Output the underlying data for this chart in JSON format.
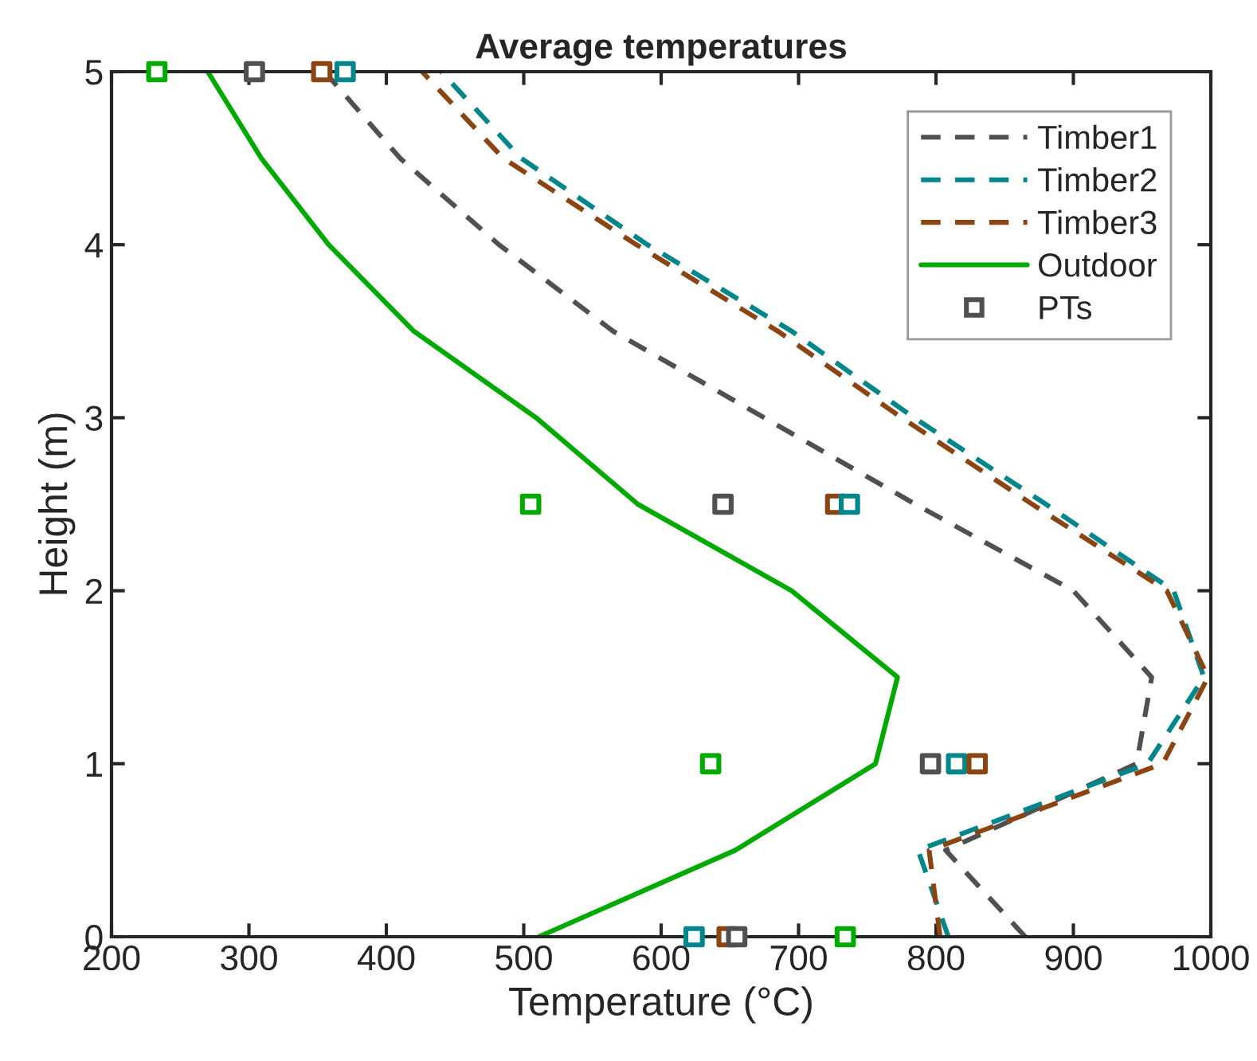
{
  "chart_data": {
    "type": "line",
    "title": "Average temperatures",
    "xlabel": "Temperature (°C)",
    "ylabel": "Height (m)",
    "xlim": [
      200,
      1000
    ],
    "xticks": [
      200,
      300,
      400,
      500,
      600,
      700,
      800,
      900,
      1000
    ],
    "ylim": [
      0,
      5
    ],
    "yticks": [
      0,
      1,
      2,
      3,
      4,
      5
    ],
    "grid": false,
    "legend": "top right",
    "series": [
      {
        "name": "Timber1",
        "line_style": "dashed",
        "color": "#505050",
        "x": [
          865,
          807,
          946,
          957,
          900,
          785,
          675,
          565,
          482,
          410,
          355
        ],
        "values": [
          0,
          0.5,
          1,
          1.5,
          2,
          2.5,
          3,
          3.5,
          4,
          4.5,
          5
        ]
      },
      {
        "name": "Timber2",
        "line_style": "dashed",
        "color": "#00868b",
        "x": [
          809,
          787,
          954,
          995,
          973,
          880,
          784,
          695,
          590,
          498,
          440
        ],
        "values": [
          0,
          0.5,
          1,
          1.5,
          2,
          2.5,
          3,
          3.5,
          4,
          4.5,
          5
        ]
      },
      {
        "name": "Timber3",
        "line_style": "dashed",
        "color": "#8b4513",
        "x": [
          803,
          795,
          965,
          998,
          968,
          870,
          775,
          685,
          582,
          485,
          426
        ],
        "values": [
          0,
          0.5,
          1,
          1.5,
          2,
          2.5,
          3,
          3.5,
          4,
          4.5,
          5
        ]
      },
      {
        "name": "Outdoor",
        "line_style": "solid",
        "color": "#00aa00",
        "x": [
          511,
          654,
          756,
          772,
          695,
          583,
          509,
          420,
          358,
          309,
          270
        ],
        "values": [
          0,
          0.5,
          1,
          1.5,
          2,
          2.5,
          3,
          3.5,
          4,
          4.5,
          5
        ]
      },
      {
        "name": "PTs",
        "type": "scatter",
        "marker": "square",
        "color": "#505050",
        "x": [
          233,
          304,
          353,
          370,
          505,
          645,
          727,
          737,
          636,
          796,
          815,
          830,
          624,
          648,
          655,
          734
        ],
        "values": [
          5,
          5,
          5,
          5,
          2.5,
          2.5,
          2.5,
          2.5,
          1,
          1,
          1,
          1,
          0,
          0,
          0,
          0
        ],
        "colors": [
          "#00aa00",
          "#505050",
          "#8b4513",
          "#00868b",
          "#00aa00",
          "#505050",
          "#8b4513",
          "#00868b",
          "#00aa00",
          "#505050",
          "#00868b",
          "#8b4513",
          "#00868b",
          "#8b4513",
          "#505050",
          "#00aa00"
        ]
      }
    ]
  }
}
